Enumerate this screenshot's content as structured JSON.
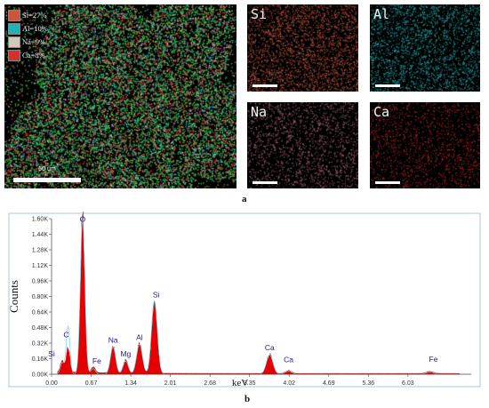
{
  "top_figure": {
    "legend": [
      {
        "label": "Si=27%",
        "color": "#c8573c"
      },
      {
        "label": "Al=10%",
        "color": "#1fb4b4"
      },
      {
        "label": "Na=9%",
        "color": "#d3c8bd"
      },
      {
        "label": "Ca=8%",
        "color": "#d4302d"
      }
    ],
    "scale_label": "50 um",
    "maps": [
      {
        "label": "Si",
        "color": "#c85a46"
      },
      {
        "label": "Al",
        "color": "#28aeb0"
      },
      {
        "label": "Na",
        "color": "#a86a74"
      },
      {
        "label": "Ca",
        "color": "#b02c2c"
      }
    ],
    "caption": "a"
  },
  "chart_data": {
    "type": "area",
    "xlabel": "keV",
    "ylabel": "Counts",
    "xlim": [
      0,
      7.1
    ],
    "ylim": [
      0,
      1600
    ],
    "x_ticks": [
      "0.00",
      "0.67",
      "1.34",
      "2.01",
      "2.68",
      "3.35",
      "4.02",
      "4.69",
      "5.36",
      "6.03"
    ],
    "x_tick_values": [
      0,
      0.67,
      1.34,
      2.01,
      2.68,
      3.35,
      4.02,
      4.69,
      5.36,
      6.03
    ],
    "y_ticks": [
      "0.00K",
      "0.16K",
      "0.32K",
      "0.48K",
      "0.64K",
      "0.80K",
      "0.96K",
      "1.12K",
      "1.28K",
      "1.44K",
      "1.60K"
    ],
    "y_tick_values": [
      0,
      160,
      320,
      480,
      640,
      800,
      960,
      1120,
      1280,
      1440,
      1600
    ],
    "peaks": [
      {
        "label": "O",
        "energy": 0.525,
        "height": 1530,
        "width": 0.035
      },
      {
        "label": "C",
        "energy": 0.277,
        "height": 250,
        "width": 0.03
      },
      {
        "label": "Si",
        "energy": 0.18,
        "height": 110,
        "width": 0.03
      },
      {
        "label": "Fe",
        "energy": 0.705,
        "height": 55,
        "width": 0.035
      },
      {
        "label": "Na",
        "energy": 1.04,
        "height": 270,
        "width": 0.04
      },
      {
        "label": "Mg",
        "energy": 1.254,
        "height": 130,
        "width": 0.04
      },
      {
        "label": "Al",
        "energy": 1.487,
        "height": 295,
        "width": 0.045
      },
      {
        "label": "Si",
        "energy": 1.74,
        "height": 720,
        "width": 0.045
      },
      {
        "label": "Ca",
        "energy": 3.69,
        "height": 190,
        "width": 0.05
      },
      {
        "label": "Ca",
        "energy": 4.01,
        "height": 30,
        "width": 0.05
      },
      {
        "label": "Fe",
        "energy": 6.4,
        "height": 20,
        "width": 0.06
      }
    ],
    "series": [
      {
        "name": "",
        "color": "#e60000",
        "kind": "filled"
      },
      {
        "name": "",
        "color": "#7fd3e8",
        "kind": "line"
      }
    ]
  },
  "bottom_caption": "b"
}
